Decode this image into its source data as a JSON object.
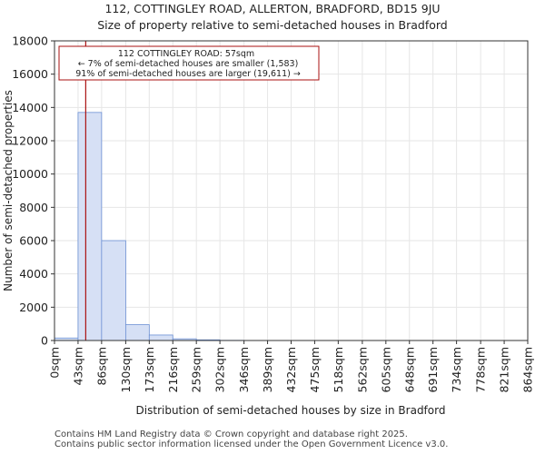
{
  "header": {
    "title_line1": "112, COTTINGLEY ROAD, ALLERTON, BRADFORD, BD15 9JU",
    "title_line2": "Size of property relative to semi-detached houses in Bradford"
  },
  "footer": {
    "line1": "Contains HM Land Registry data © Crown copyright and database right 2025.",
    "line2": "Contains public sector information licensed under the Open Government Licence v3.0."
  },
  "colors": {
    "bar_fill": "#d6e0f5",
    "bar_stroke": "#6b8fd4",
    "marker": "#aa1111",
    "grid": "#e6e6e6",
    "axis": "#333333"
  },
  "chart_data": {
    "type": "bar",
    "title": "Size of property relative to semi-detached houses in Bradford",
    "xlabel": "Distribution of semi-detached houses by size in Bradford",
    "ylabel": "Number of semi-detached properties",
    "ylim": [
      0,
      18000
    ],
    "yticks": [
      0,
      2000,
      4000,
      6000,
      8000,
      10000,
      12000,
      14000,
      16000,
      18000
    ],
    "xlim": [
      0,
      864
    ],
    "bin_edges": [
      0,
      43,
      86,
      130,
      173,
      216,
      259,
      302,
      346,
      389,
      432,
      475,
      518,
      562,
      605,
      648,
      691,
      734,
      778,
      821,
      864
    ],
    "tick_labels": [
      "0sqm",
      "43sqm",
      "86sqm",
      "130sqm",
      "173sqm",
      "216sqm",
      "259sqm",
      "302sqm",
      "346sqm",
      "389sqm",
      "432sqm",
      "475sqm",
      "518sqm",
      "562sqm",
      "605sqm",
      "648sqm",
      "691sqm",
      "734sqm",
      "778sqm",
      "821sqm",
      "864sqm"
    ],
    "values": [
      150,
      13700,
      6000,
      950,
      330,
      100,
      40,
      10,
      5,
      3,
      2,
      1,
      1,
      1,
      0,
      0,
      0,
      0,
      0,
      0
    ],
    "grid": true,
    "marker": {
      "x": 57,
      "line1": "112 COTTINGLEY ROAD: 57sqm",
      "line2": "← 7% of semi-detached houses are smaller (1,583)",
      "line3": "91% of semi-detached houses are larger (19,611) →"
    }
  }
}
